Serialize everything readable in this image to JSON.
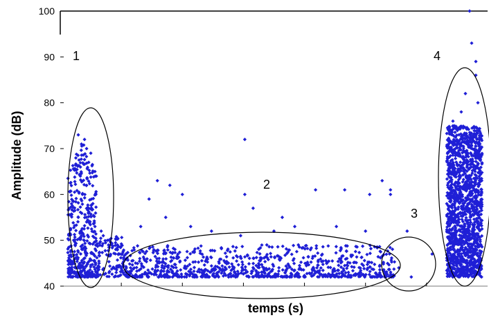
{
  "chart_data": {
    "type": "scatter",
    "title": "",
    "xlabel": "temps (s)",
    "ylabel": "Amplitude (dB)",
    "ylim": [
      40,
      100
    ],
    "yticks": [
      "40",
      "50",
      "60",
      "70",
      "80",
      "90",
      "100"
    ],
    "grid": false,
    "marker_color": "#1f1fd6",
    "annotation_color": "#000000",
    "region_labels": [
      "1",
      "2",
      "3",
      "4"
    ],
    "series": [
      {
        "note": "x in relative time fraction (no x tick labels printed)",
        "points": [
          [
            0.03,
            73
          ],
          [
            0.045,
            72
          ],
          [
            0.05,
            70
          ],
          [
            0.06,
            69
          ],
          [
            0.055,
            67
          ],
          [
            0.07,
            65
          ],
          [
            0.035,
            64
          ],
          [
            0.05,
            62
          ],
          [
            0.04,
            60
          ],
          [
            0.065,
            58
          ],
          [
            0.055,
            57
          ],
          [
            0.03,
            55
          ],
          [
            0.05,
            54
          ],
          [
            0.07,
            53
          ],
          [
            0.085,
            52
          ],
          [
            0.09,
            51
          ],
          [
            0.1,
            50
          ],
          [
            0.11,
            49
          ],
          [
            0.12,
            48
          ],
          [
            0.13,
            47
          ],
          [
            0.14,
            46
          ],
          [
            0.08,
            45
          ],
          [
            0.22,
            63
          ],
          [
            0.25,
            62
          ],
          [
            0.28,
            60
          ],
          [
            0.2,
            59
          ],
          [
            0.24,
            55
          ],
          [
            0.18,
            53
          ],
          [
            0.3,
            53
          ],
          [
            0.35,
            52
          ],
          [
            0.42,
            51
          ],
          [
            0.5,
            52
          ],
          [
            0.55,
            53
          ],
          [
            0.43,
            72
          ],
          [
            0.43,
            60
          ],
          [
            0.45,
            57
          ],
          [
            0.52,
            55
          ],
          [
            0.6,
            61
          ],
          [
            0.67,
            61
          ],
          [
            0.73,
            60
          ],
          [
            0.78,
            60
          ],
          [
            0.65,
            53
          ],
          [
            0.72,
            52
          ],
          [
            0.76,
            63
          ],
          [
            0.78,
            61
          ],
          [
            0.82,
            52
          ],
          [
            0.88,
            47
          ],
          [
            0.83,
            42
          ],
          [
            0.8,
            44
          ],
          [
            0.97,
            100
          ],
          [
            0.975,
            93
          ],
          [
            0.985,
            86
          ],
          [
            0.99,
            80
          ],
          [
            0.95,
            78
          ],
          [
            0.93,
            76
          ],
          [
            0.92,
            74
          ],
          [
            0.96,
            82
          ],
          [
            0.985,
            89
          ]
        ]
      }
    ]
  }
}
